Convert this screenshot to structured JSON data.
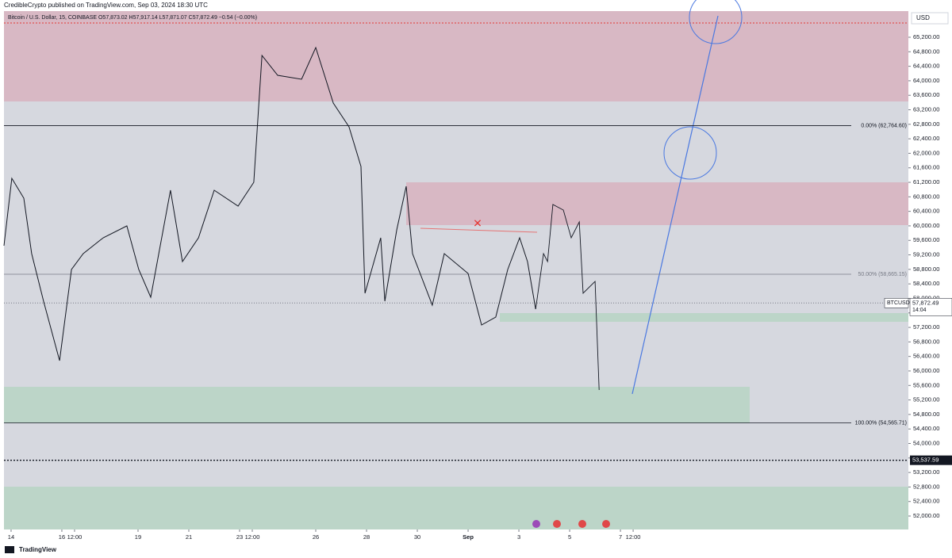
{
  "header": "CredibleCrypto published on TradingView.com, Sep 03, 2024 18:30 UTC",
  "footer": "TradingView",
  "chart_data": {
    "type": "line",
    "legend_text": "Bitcoin / U.S. Dollar, 15, COINBASE  O57,873.02 H57,917.14 L57,871.07 C57,872.49 −0.54 (−0.00%)",
    "currency": "USD",
    "xlim": [
      13.72,
      49.34
    ],
    "ylim": [
      51629,
      65921
    ],
    "xticks": [
      14,
      16,
      {
        "value": 16.5,
        "label": "12:00"
      },
      19,
      21,
      23,
      {
        "value": 23.5,
        "label": "12:00"
      },
      26,
      28,
      30,
      {
        "value": 32,
        "label": "Sep"
      },
      {
        "value": 34,
        "label": "3"
      },
      {
        "value": 36,
        "label": "5"
      },
      {
        "value": 38,
        "label": "7"
      },
      {
        "value": 38.5,
        "label": "12:00"
      }
    ],
    "yticks": [
      {
        "value": 52000,
        "label": "52,000.00"
      },
      {
        "value": 52400,
        "label": "52,400.00"
      },
      {
        "value": 52800,
        "label": "52,800.00"
      },
      {
        "value": 53200,
        "label": "53,200.00"
      },
      {
        "value": 53600,
        "label": "53,600.00"
      },
      {
        "value": 54000,
        "label": "54,000.00"
      },
      {
        "value": 54400,
        "label": "54,400.00"
      },
      {
        "value": 54800,
        "label": "54,800.00"
      },
      {
        "value": 55200,
        "label": "55,200.00"
      },
      {
        "value": 55600,
        "label": "55,600.00"
      },
      {
        "value": 56000,
        "label": "56,000.00"
      },
      {
        "value": 56400,
        "label": "56,400.00"
      },
      {
        "value": 56800,
        "label": "56,800.00"
      },
      {
        "value": 57200,
        "label": "57,200.00"
      },
      {
        "value": 57600,
        "label": "57,600.00"
      },
      {
        "value": 58000,
        "label": "58,000.00"
      },
      {
        "value": 58400,
        "label": "58,400.00"
      },
      {
        "value": 58800,
        "label": "58,800.00"
      },
      {
        "value": 59200,
        "label": "59,200.00"
      },
      {
        "value": 59600,
        "label": "59,600.00"
      },
      {
        "value": 60000,
        "label": "60,000.00"
      },
      {
        "value": 60400,
        "label": "60,400.00"
      },
      {
        "value": 60800,
        "label": "60,800.00"
      },
      {
        "value": 61200,
        "label": "61,200.00"
      },
      {
        "value": 61600,
        "label": "61,600.00"
      },
      {
        "value": 62000,
        "label": "62,000.00"
      },
      {
        "value": 62400,
        "label": "62,400.00"
      },
      {
        "value": 62800,
        "label": "62,800.00"
      },
      {
        "value": 63200,
        "label": "63,200.00"
      },
      {
        "value": 63600,
        "label": "63,600.00"
      },
      {
        "value": 64000,
        "label": "64,000.00"
      },
      {
        "value": 64400,
        "label": "64,400.00"
      },
      {
        "value": 64800,
        "label": "64,800.00"
      },
      {
        "value": 65200,
        "label": "65,200.00"
      }
    ],
    "series": [
      {
        "color": "#131722",
        "x": [
          13.72,
          14.03,
          14.5,
          14.81,
          15.28,
          15.91,
          16.38,
          16.84,
          17.63,
          18.56,
          19.03,
          19.5,
          20.28,
          20.75,
          21.38,
          22.0,
          22.94,
          23.56,
          23.88,
          24.5,
          25.44,
          26.0,
          26.69,
          27.31,
          27.78,
          27.94,
          28.56,
          28.72,
          29.19,
          29.56,
          29.81,
          30.59,
          31.06,
          32.0,
          32.53,
          33.09,
          33.56,
          34.03,
          34.34,
          34.66
        ],
        "values": [
          59452,
          61310,
          60764,
          59234,
          57923,
          56284,
          58797,
          59234,
          59671,
          59999,
          58797,
          58032,
          60982,
          59016,
          59671,
          60982,
          60545,
          61201,
          64697,
          64151,
          64042,
          64916,
          63386,
          62731,
          61638,
          58141,
          59671,
          57923,
          59889,
          61091,
          59234,
          57814,
          59234,
          58688,
          57268,
          57486,
          58797,
          59671,
          59016,
          57705
        ]
      },
      {
        "color": "#131722",
        "x": [
          34.66,
          34.97,
          35.13,
          35.34,
          35.75,
          36.06,
          36.38,
          36.53,
          37.0,
          37.16
        ],
        "values": [
          57705,
          59234,
          59016,
          60589,
          60436,
          59671,
          60108,
          58141,
          58469,
          55475
        ]
      }
    ],
    "levels": [
      {
        "value": 62764.6,
        "label": "0.00% (62,764.60)",
        "color": "#131722"
      },
      {
        "value": 58665.15,
        "label": "50.00% (58,665.15)",
        "color": "#787b86"
      },
      {
        "value": 54565.71,
        "label": "100.00% (54,565.71)",
        "color": "#131722"
      }
    ],
    "support": {
      "value": 53537.59,
      "label": "53,537.59"
    },
    "last_price": {
      "symbol": "BTCUSD",
      "value": 57872.49,
      "label": "57,872.49",
      "countdown": "14:04"
    }
  }
}
